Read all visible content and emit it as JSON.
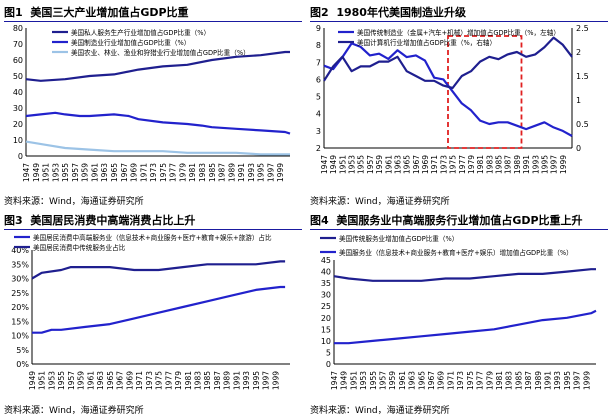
{
  "colors": {
    "navy": "#1f1f8f",
    "blue": "#2222cc",
    "light": "#9cc3e6",
    "red": "#e02020"
  },
  "panels": [
    {
      "label": "图1",
      "title": "美国三大产业增加值占GDP比重",
      "source": "资料来源：Wind，海通证券研究所"
    },
    {
      "label": "图2",
      "title": "1980年代美国制造业升级",
      "source": "资料来源：Wind，海通证券研究所"
    },
    {
      "label": "图3",
      "title": "美国居民消费中高端消费占比上升",
      "source": "资料来源：Wind，海通证券研究所"
    },
    {
      "label": "图4",
      "title": "美国服务业中高端服务行业增加值占GDP比重上升",
      "source": "资料来源：Wind，海通证券研究所"
    }
  ],
  "chart_data": [
    {
      "type": "line",
      "ylim": [
        0,
        80
      ],
      "yticks": [
        0,
        10,
        20,
        30,
        40,
        50,
        60,
        70,
        80
      ],
      "xlim": [
        1947,
        2001
      ],
      "xticks": [
        1947,
        1949,
        1951,
        1953,
        1955,
        1957,
        1959,
        1961,
        1963,
        1965,
        1967,
        1969,
        1971,
        1973,
        1975,
        1977,
        1979,
        1981,
        1983,
        1985,
        1987,
        1989,
        1991,
        1993,
        1995,
        1997,
        1999
      ],
      "series": [
        {
          "name": "美国私人服务生产行业增加值占GDP比重（%）",
          "color": "#1f1f8f",
          "x": [
            1947,
            1950,
            1955,
            1960,
            1965,
            1970,
            1975,
            1980,
            1985,
            1990,
            1995,
            2000,
            2001
          ],
          "y": [
            48,
            47,
            48,
            50,
            51,
            54,
            56,
            57,
            60,
            62,
            63,
            65,
            65
          ]
        },
        {
          "name": "美国制造业行业增加值占GDP比重（%）",
          "color": "#2222cc",
          "x": [
            1947,
            1950,
            1953,
            1955,
            1958,
            1960,
            1965,
            1968,
            1970,
            1975,
            1980,
            1983,
            1985,
            1990,
            1995,
            2000,
            2001
          ],
          "y": [
            25,
            26,
            27,
            26,
            25,
            25,
            26,
            25,
            23,
            21,
            20,
            19,
            18,
            17,
            16,
            15,
            14
          ]
        },
        {
          "name": "美国农业、林业、渔业和狩猎业行业增加值占GDP比重（%）",
          "color": "#9cc3e6",
          "x": [
            1947,
            1949,
            1951,
            1955,
            1960,
            1965,
            1970,
            1975,
            1980,
            1985,
            1990,
            1995,
            2001
          ],
          "y": [
            9,
            8,
            7,
            5,
            4,
            3,
            3,
            3,
            2,
            2,
            2,
            1,
            1
          ]
        }
      ]
    },
    {
      "type": "line",
      "ylim": [
        2,
        9
      ],
      "yticks": [
        2,
        3,
        4,
        5,
        6,
        7,
        8,
        9
      ],
      "y2lim": [
        0,
        2.5
      ],
      "y2ticks": [
        0,
        0.5,
        1,
        1.5,
        2,
        2.5
      ],
      "xlim": [
        1947,
        2001
      ],
      "xticks": [
        1947,
        1949,
        1951,
        1953,
        1955,
        1957,
        1959,
        1961,
        1963,
        1965,
        1967,
        1969,
        1971,
        1973,
        1975,
        1977,
        1979,
        1981,
        1983,
        1985,
        1987,
        1989,
        1991,
        1993,
        1995,
        1997,
        1999
      ],
      "highlight": [
        1974,
        1990
      ],
      "series": [
        {
          "name": "美国传统制造业（金属+汽车+机械）增加值占GDP比重（%，左轴）",
          "color": "#2222cc",
          "axis": "left",
          "x": [
            1947,
            1949,
            1951,
            1953,
            1955,
            1957,
            1959,
            1961,
            1963,
            1965,
            1967,
            1969,
            1971,
            1973,
            1975,
            1977,
            1979,
            1981,
            1983,
            1985,
            1987,
            1989,
            1991,
            1993,
            1995,
            1997,
            1999,
            2001
          ],
          "y": [
            6.8,
            6.6,
            7.3,
            8.1,
            7.9,
            7.4,
            7.5,
            7.2,
            7.7,
            7.3,
            7.4,
            7.1,
            6.1,
            6.0,
            5.3,
            4.6,
            4.2,
            3.6,
            3.4,
            3.5,
            3.5,
            3.3,
            3.1,
            3.3,
            3.5,
            3.2,
            3.0,
            2.7
          ]
        },
        {
          "name": "美国计算机行业增加值占GDP比重（%，右轴）",
          "color": "#1f1f8f",
          "axis": "right",
          "x": [
            1947,
            1949,
            1951,
            1953,
            1955,
            1957,
            1959,
            1961,
            1963,
            1965,
            1967,
            1969,
            1971,
            1973,
            1975,
            1977,
            1979,
            1981,
            1983,
            1985,
            1987,
            1989,
            1991,
            1993,
            1995,
            1997,
            1999,
            2001
          ],
          "y": [
            1.4,
            1.7,
            1.9,
            1.6,
            1.7,
            1.7,
            1.8,
            1.8,
            1.9,
            1.6,
            1.5,
            1.4,
            1.4,
            1.3,
            1.25,
            1.5,
            1.6,
            1.8,
            1.9,
            1.85,
            1.95,
            2.0,
            1.9,
            1.95,
            2.1,
            2.3,
            2.15,
            1.9
          ]
        }
      ]
    },
    {
      "type": "line",
      "ylim": [
        0,
        40
      ],
      "yticks": [
        "0%",
        "5%",
        "10%",
        "15%",
        "20%",
        "25%",
        "30%",
        "35%",
        "40%"
      ],
      "xlim": [
        1949,
        2002
      ],
      "xticks": [
        1949,
        1951,
        1953,
        1955,
        1957,
        1959,
        1961,
        1963,
        1965,
        1967,
        1969,
        1971,
        1973,
        1975,
        1977,
        1979,
        1981,
        1983,
        1985,
        1987,
        1989,
        1991,
        1993,
        1995,
        1997,
        1999
      ],
      "series": [
        {
          "name": "美国居民消费中高端服务业（信息技术+商业服务+医疗+教育+娱乐+旅游）占比",
          "color": "#2222cc",
          "x": [
            1949,
            1951,
            1953,
            1955,
            1960,
            1965,
            1970,
            1975,
            1980,
            1985,
            1990,
            1995,
            2000,
            2001
          ],
          "y": [
            11,
            11,
            12,
            12,
            13,
            14,
            16,
            18,
            20,
            22,
            24,
            26,
            27,
            27
          ]
        },
        {
          "name": "美国居民消费中传统服务业占比",
          "color": "#1f1f8f",
          "x": [
            1949,
            1951,
            1955,
            1957,
            1960,
            1965,
            1970,
            1975,
            1980,
            1985,
            1990,
            1995,
            2000,
            2001
          ],
          "y": [
            30,
            32,
            33,
            34,
            34,
            34,
            33,
            33,
            34,
            35,
            35,
            35,
            36,
            36
          ]
        }
      ]
    },
    {
      "type": "line",
      "ylim": [
        0,
        45
      ],
      "yticks": [
        0,
        5,
        10,
        15,
        20,
        25,
        30,
        35,
        40,
        45
      ],
      "xlim": [
        1947,
        2001
      ],
      "xticks": [
        1947,
        1949,
        1951,
        1953,
        1955,
        1957,
        1959,
        1961,
        1963,
        1965,
        1967,
        1969,
        1971,
        1973,
        1975,
        1977,
        1979,
        1981,
        1983,
        1985,
        1987,
        1989,
        1991,
        1993,
        1995,
        1997,
        1999
      ],
      "series": [
        {
          "name": "美国传统服务业增加值占GDP比重（%）",
          "color": "#1f1f8f",
          "x": [
            1947,
            1950,
            1955,
            1960,
            1965,
            1970,
            1975,
            1980,
            1985,
            1990,
            1995,
            2000,
            2001
          ],
          "y": [
            38,
            37,
            36,
            36,
            36,
            37,
            37,
            38,
            39,
            39,
            40,
            41,
            41
          ]
        },
        {
          "name": "美国服务业（信息技术+商业服务+教育+医疗+娱乐）增加值占GDP比重（%）",
          "color": "#2222cc",
          "x": [
            1947,
            1950,
            1955,
            1960,
            1965,
            1970,
            1975,
            1980,
            1985,
            1990,
            1995,
            2000,
            2001
          ],
          "y": [
            9,
            9,
            10,
            11,
            12,
            13,
            14,
            15,
            17,
            19,
            20,
            22,
            23
          ]
        }
      ]
    }
  ]
}
